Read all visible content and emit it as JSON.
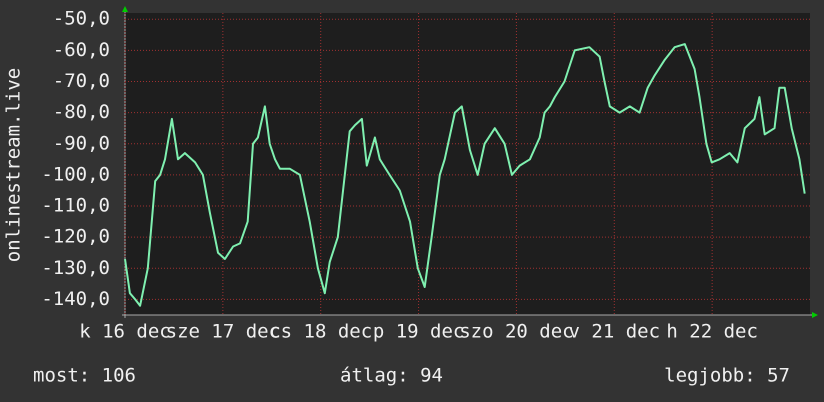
{
  "chart_data": {
    "type": "line",
    "ylabel": "onlinestream.live",
    "footer": [
      "most: 106",
      "átlag: 94",
      "legjobb: 57"
    ],
    "xlim": [
      0,
      168
    ],
    "xticks": [
      {
        "value": 0,
        "label": "k 16 dec"
      },
      {
        "value": 24,
        "label": "sze 17 dec"
      },
      {
        "value": 48,
        "label": "cs 18 dec"
      },
      {
        "value": 72,
        "label": "p 19 dec"
      },
      {
        "value": 96,
        "label": "szo 20 dec"
      },
      {
        "value": 120,
        "label": "v 21 dec"
      },
      {
        "value": 144,
        "label": "h 22 dec"
      }
    ],
    "ylim": [
      -48,
      -145
    ],
    "yticks": [
      {
        "value": -50,
        "label": "-50,0"
      },
      {
        "value": -60,
        "label": "-60,0"
      },
      {
        "value": -70,
        "label": "-70,0"
      },
      {
        "value": -80,
        "label": "-80,0"
      },
      {
        "value": -90,
        "label": "-90,0"
      },
      {
        "value": -100,
        "label": "-100,0"
      },
      {
        "value": -110,
        "label": "-110,0"
      },
      {
        "value": -120,
        "label": "-120,0"
      },
      {
        "value": -130,
        "label": "-130,0"
      },
      {
        "value": -140,
        "label": "-140,0"
      }
    ],
    "grid": true,
    "series": [
      {
        "color": "#7ff0b0",
        "x": [
          0,
          1.2,
          2.5,
          3.7,
          5.6,
          7.4,
          8.6,
          9.8,
          11.5,
          13.0,
          14.7,
          17.2,
          19.1,
          20.8,
          22.8,
          24.5,
          26.5,
          28.2,
          30.1,
          31.4,
          32.6,
          34.3,
          35.5,
          36.8,
          38.0,
          40.4,
          42.9,
          45.3,
          47.3,
          49.0,
          50.2,
          52.2,
          53.9,
          55.1,
          56.4,
          58.1,
          59.3,
          61.3,
          62.5,
          64.9,
          67.4,
          69.9,
          71.8,
          73.5,
          75.2,
          77.2,
          78.4,
          80.9,
          82.6,
          84.6,
          86.5,
          88.2,
          90.7,
          93.1,
          94.9,
          96.8,
          99.3,
          101.7,
          102.9,
          104.2,
          105.4,
          107.8,
          110.3,
          113.9,
          116.4,
          117.6,
          118.9,
          121.3,
          123.8,
          126.2,
          128.2,
          129.9,
          132.4,
          134.8,
          137.3,
          139.7,
          140.9,
          142.6,
          143.9,
          145.8,
          148.3,
          150.2,
          152.0,
          154.4,
          155.6,
          156.9,
          159.3,
          160.5,
          161.8,
          163.5,
          165.4,
          166.7
        ],
        "values": [
          -127,
          -138,
          -140,
          -142,
          -130,
          -102,
          -100,
          -95,
          -82,
          -95,
          -93,
          -96,
          -100,
          -112,
          -125,
          -127,
          -123,
          -122,
          -115,
          -90,
          -88,
          -78,
          -90,
          -95,
          -98,
          -98,
          -100,
          -115,
          -130,
          -138,
          -128,
          -120,
          -100,
          -86,
          -84,
          -82,
          -97,
          -88,
          -95,
          -100,
          -105,
          -115,
          -130,
          -136,
          -120,
          -100,
          -95,
          -80,
          -78,
          -92,
          -100,
          -90,
          -85,
          -90,
          -100,
          -97,
          -95,
          -88,
          -80,
          -78,
          -75,
          -70,
          -60,
          -59,
          -62,
          -70,
          -78,
          -80,
          -78,
          -80,
          -72,
          -68,
          -63,
          -59,
          -58,
          -66,
          -75,
          -90,
          -96,
          -95,
          -93,
          -96,
          -85,
          -82,
          -75,
          -87,
          -85,
          -72,
          -72,
          -85,
          -95,
          -106
        ]
      }
    ]
  }
}
